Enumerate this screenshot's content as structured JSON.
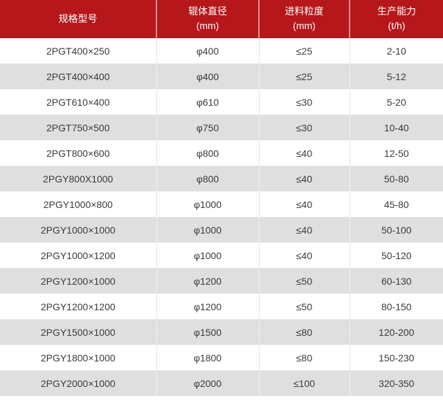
{
  "chart_data": {
    "type": "table",
    "title": "",
    "columns": [
      {
        "label": "规格型号",
        "unit": ""
      },
      {
        "label": "辊体直径",
        "unit": "(mm)"
      },
      {
        "label": "进料粒度",
        "unit": "(mm)"
      },
      {
        "label": "生产能力",
        "unit": "(t/h)"
      }
    ],
    "rows": [
      [
        "2PGT400×250",
        "φ400",
        "≤25",
        "2-10"
      ],
      [
        "2PGT400×400",
        "φ400",
        "≤25",
        "5-12"
      ],
      [
        "2PGT610×400",
        "φ610",
        "≤30",
        "5-20"
      ],
      [
        "2PGT750×500",
        "φ750",
        "≤30",
        "10-40"
      ],
      [
        "2PGT800×600",
        "φ800",
        "≤40",
        "12-50"
      ],
      [
        "2PGY800X1000",
        "φ800",
        "≤40",
        "50-80"
      ],
      [
        "2PGY1000×800",
        "φ1000",
        "≤40",
        "45-80"
      ],
      [
        "2PGY1000×1000",
        "φ1000",
        "≤40",
        "50-100"
      ],
      [
        "2PGY1000×1200",
        "φ1000",
        "≤40",
        "50-120"
      ],
      [
        "2PGY1200×1000",
        "φ1200",
        "≤50",
        "60-130"
      ],
      [
        "2PGY1200×1200",
        "φ1200",
        "≤50",
        "80-150"
      ],
      [
        "2PGY1500×1000",
        "φ1500",
        "≤80",
        "120-200"
      ],
      [
        "2PGY1800×1000",
        "φ1800",
        "≤80",
        "150-230"
      ],
      [
        "2PGY2000×1000",
        "φ2000",
        "≤100",
        "320-350"
      ]
    ],
    "layout_hints": {
      "header_rows": 1,
      "alternating_row_shading": true,
      "first_data_row_shade": "white"
    }
  },
  "colors": {
    "header_bg": "#b5171a",
    "header_text": "#ffffff",
    "row_alt_bg": "#dfdfdf",
    "body_text": "#3a3a3a"
  }
}
